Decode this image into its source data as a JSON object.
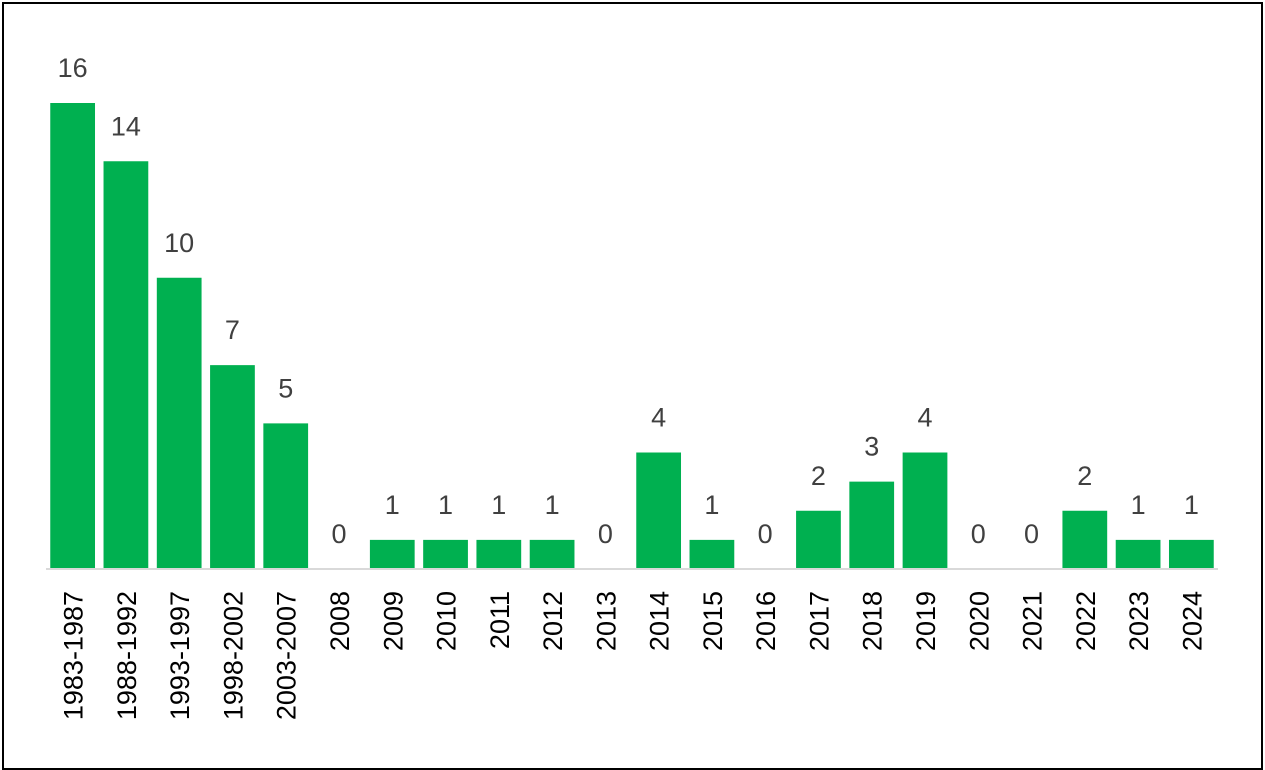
{
  "chart_data": {
    "type": "bar",
    "title": "",
    "xlabel": "",
    "ylabel": "",
    "categories": [
      "1983-1987",
      "1988-1992",
      "1993-1997",
      "1998-2002",
      "2003-2007",
      "2008",
      "2009",
      "2010",
      "2011",
      "2012",
      "2013",
      "2014",
      "2015",
      "2016",
      "2017",
      "2018",
      "2019",
      "2020",
      "2021",
      "2022",
      "2023",
      "2024"
    ],
    "values": [
      16,
      14,
      10,
      7,
      5,
      0,
      1,
      1,
      1,
      1,
      0,
      4,
      1,
      0,
      2,
      3,
      4,
      0,
      0,
      2,
      1,
      1
    ],
    "ylim": [
      0,
      16
    ],
    "grid": false,
    "legend": "none",
    "bar_color": "#00b050",
    "data_label_color": "#404040",
    "axis_color": "#d9d9d9"
  }
}
